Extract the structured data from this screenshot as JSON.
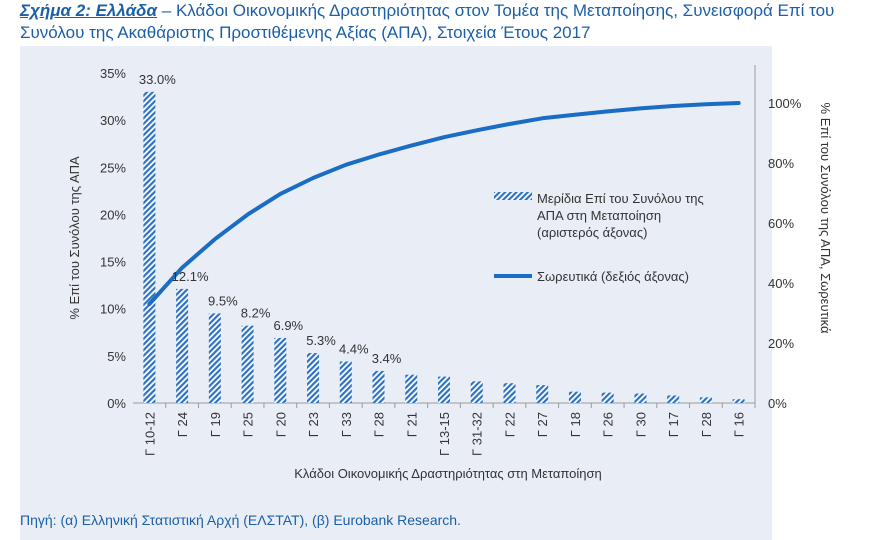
{
  "heading": {
    "label": "Σχήμα 2: Ελλάδα",
    "text": " – Κλάδοι Οικονομικής Δραστηριότητας στον Τομέα της Μεταποίησης, Συνεισφορά Επί του Συνόλου της Ακαθάριστης Προστιθέμενης Αξίας (ΑΠΑ), Στοιχεία Έτους 2017"
  },
  "source": "Πηγή: (α) Ελληνική Στατιστική Αρχή (ΕΛΣΤΑΤ), (β) Eurobank Research.",
  "chart_data": {
    "type": "bar",
    "categories": [
      "Γ 10-12",
      "Γ 24",
      "Γ 19",
      "Γ 25",
      "Γ 20",
      "Γ 23",
      "Γ 33",
      "Γ 28",
      "Γ 21",
      "Γ 13-15",
      "Γ 31-32",
      "Γ 22",
      "Γ 27",
      "Γ 18",
      "Γ 26",
      "Γ 30",
      "Γ 17",
      "Γ 28",
      "Γ 16"
    ],
    "series": [
      {
        "name": "Μερίδια Επί του Συνόλου της ΑΠΑ στη Μεταποίηση (αριστερός άξονας)",
        "type": "bar",
        "axis": "left",
        "values": [
          33.0,
          12.1,
          9.5,
          8.2,
          6.9,
          5.3,
          4.4,
          3.4,
          3.0,
          2.8,
          2.3,
          2.1,
          1.9,
          1.2,
          1.1,
          1.0,
          0.8,
          0.6,
          0.4
        ],
        "labels": [
          "33.0%",
          "12.1%",
          "9.5%",
          "8.2%",
          "6.9%",
          "5.3%",
          "4.4%",
          "3.4%",
          "",
          "",
          "",
          "",
          "",
          "",
          "",
          "",
          "",
          "",
          ""
        ]
      },
      {
        "name": "Σωρευτικά (δεξιός άξονας)",
        "type": "line",
        "axis": "right",
        "values": [
          33.0,
          45.1,
          54.6,
          62.8,
          69.7,
          75.0,
          79.4,
          82.8,
          85.8,
          88.6,
          90.9,
          93.0,
          94.9,
          96.1,
          97.2,
          98.2,
          99.0,
          99.6,
          100.0
        ]
      }
    ],
    "ylabel": "% Επί του Συνόλου της ΑΠΑ",
    "y2label": "% Επί του Συνόλου της ΑΠΑ, Σωρευτικά",
    "xlabel": "Κλάδοι Οικονομικής Δραστηριότητας στη Μεταποίηση",
    "ylim": [
      0,
      35
    ],
    "yticks": [
      "0%",
      "5%",
      "10%",
      "15%",
      "20%",
      "25%",
      "30%",
      "35%"
    ],
    "y2lim": [
      0,
      110
    ],
    "y2ticks": [
      "0%",
      "20%",
      "40%",
      "60%",
      "80%",
      "100%"
    ],
    "grid": false,
    "legend_position": "right",
    "colors": {
      "bar": "#2e73c4",
      "line": "#1a6cc4",
      "axis": "#9a9a9a",
      "text": "#333333",
      "heading": "#1b5fa8"
    }
  }
}
